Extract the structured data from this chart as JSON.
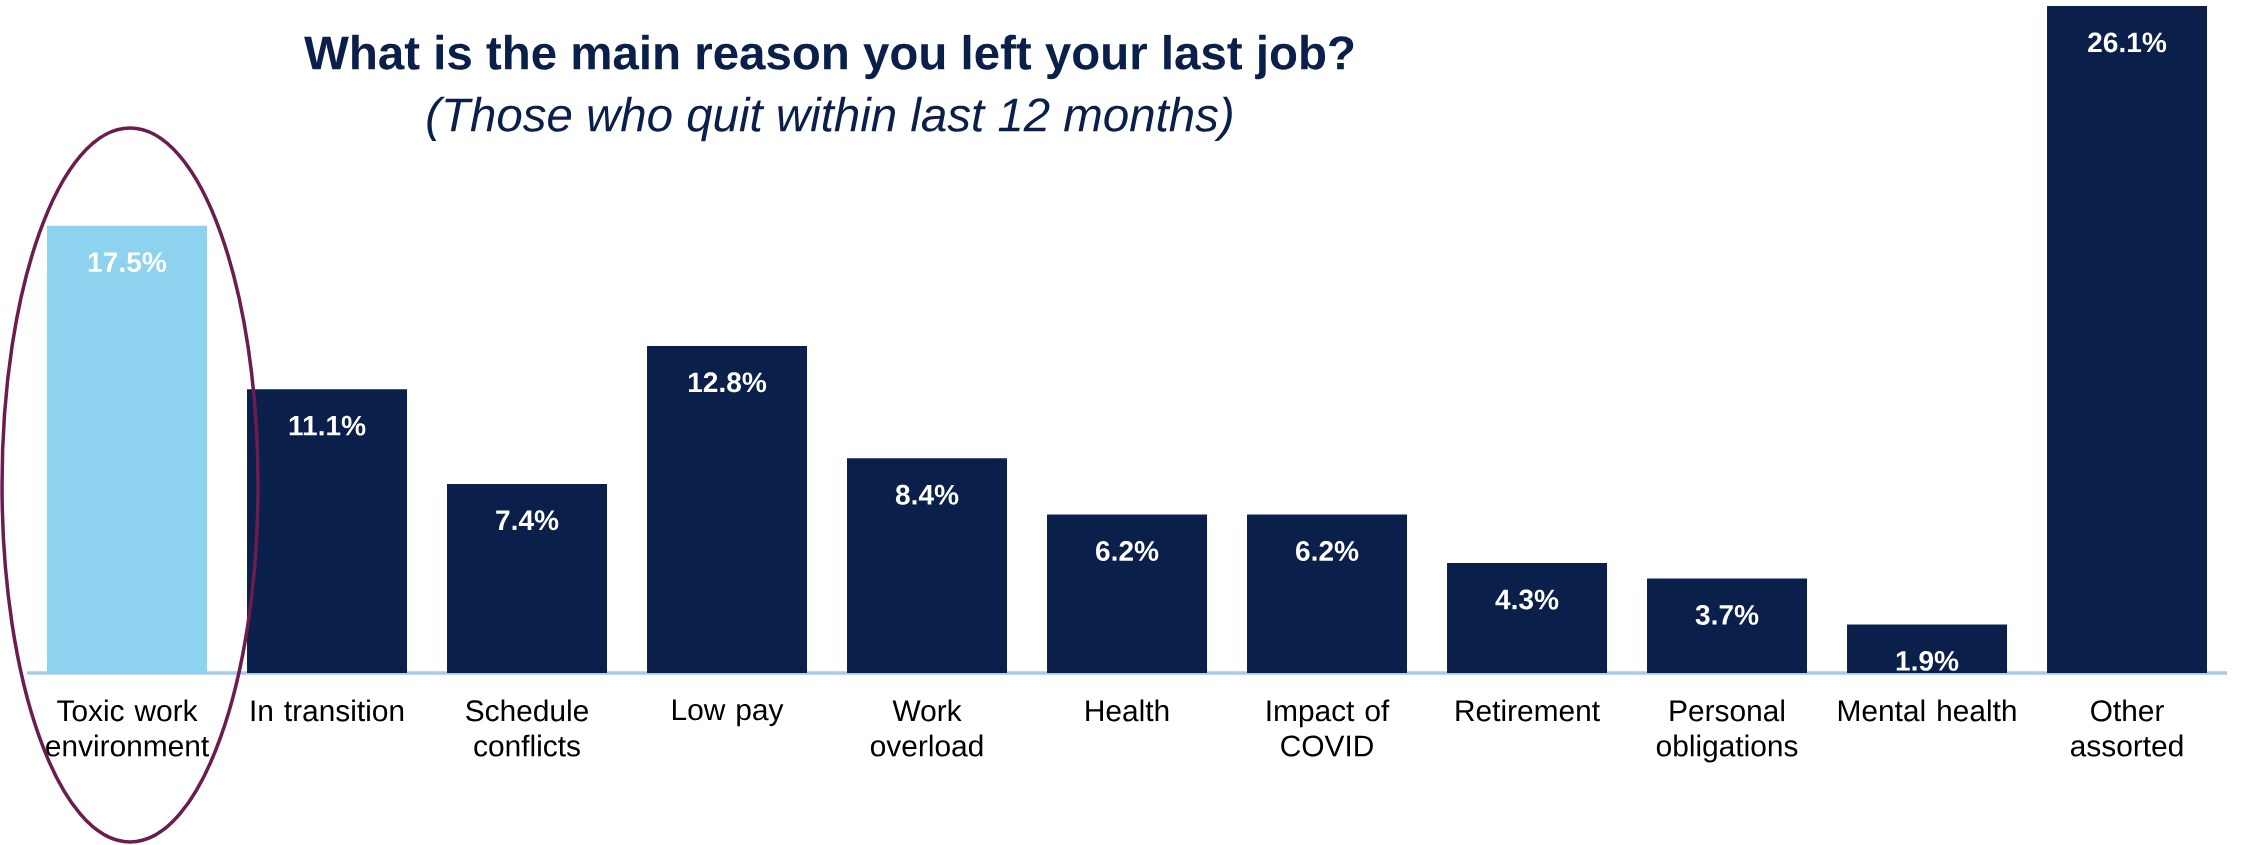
{
  "chart_data": {
    "type": "bar",
    "title": "What is the main reason you left your last job?",
    "subtitle": "(Those who quit within last 12 months)",
    "categories": [
      "Toxic work environment",
      "In transition",
      "Schedule conflicts",
      "Low pay",
      "Work overload",
      "Health",
      "Impact of COVID",
      "Retirement",
      "Personal obligations",
      "Mental health",
      "Other assorted"
    ],
    "values": [
      17.5,
      11.1,
      7.4,
      12.8,
      8.4,
      6.2,
      6.2,
      4.3,
      3.7,
      1.9,
      26.1
    ],
    "value_labels": [
      "17.5%",
      "11.1%",
      "7.4%",
      "12.8%",
      "8.4%",
      "6.2%",
      "6.2%",
      "4.3%",
      "3.7%",
      "1.9%",
      "26.1%"
    ],
    "colors": [
      "#8dd3f0",
      "#0a1f4a",
      "#0a1f4a",
      "#0a1f4a",
      "#0a1f4a",
      "#0a1f4a",
      "#0a1f4a",
      "#0a1f4a",
      "#0a1f4a",
      "#0a1f4a",
      "#0a1f4a"
    ]
  }
}
